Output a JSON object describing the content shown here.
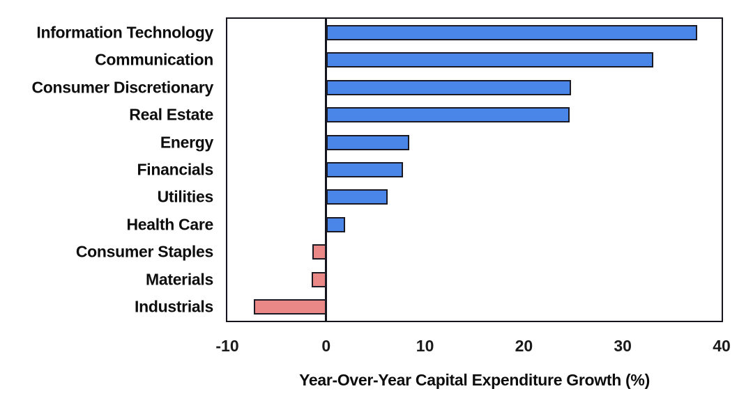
{
  "chart_data": {
    "type": "bar",
    "orientation": "horizontal",
    "title": "",
    "xlabel": "Year-Over-Year Capital Expenditure Growth (%)",
    "ylabel": "",
    "categories": [
      "Information Technology",
      "Communication",
      "Consumer Discretionary",
      "Real Estate",
      "Energy",
      "Financials",
      "Utilities",
      "Health Care",
      "Consumer Staples",
      "Materials",
      "Industrials"
    ],
    "values": [
      37.5,
      33.1,
      24.8,
      24.6,
      8.4,
      7.8,
      6.2,
      1.9,
      -1.4,
      -1.5,
      -7.3
    ],
    "xlim": [
      -10,
      40
    ],
    "xticks": [
      -10,
      0,
      10,
      20,
      30,
      40
    ],
    "grid": false,
    "legend": "none",
    "colors": {
      "positive_fill": "#4a86e8",
      "negative_fill": "#ea8888",
      "bar_border": "#1a1a24",
      "axis_line": "#14141e",
      "text": "#0d0d0d"
    }
  }
}
